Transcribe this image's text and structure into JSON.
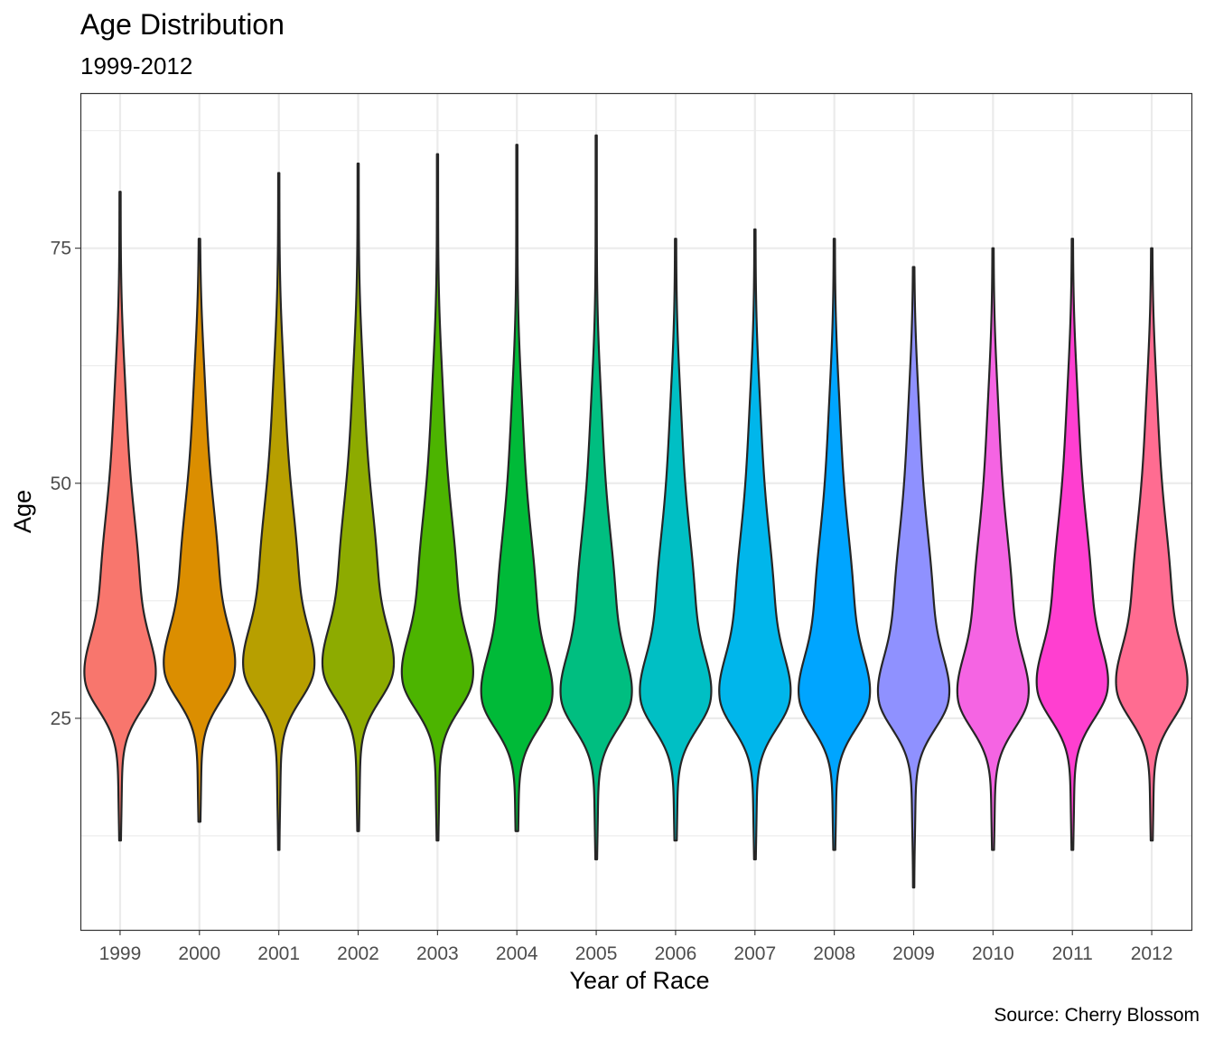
{
  "title": "Age Distribution",
  "subtitle": "1999-2012",
  "caption": "Source: Cherry Blossom",
  "chart_data": {
    "type": "violin",
    "xlabel": "Year of Race",
    "ylabel": "Age",
    "categories": [
      "1999",
      "2000",
      "2001",
      "2002",
      "2003",
      "2004",
      "2005",
      "2006",
      "2007",
      "2008",
      "2009",
      "2010",
      "2011",
      "2012"
    ],
    "ylim": [
      2.5,
      91.5
    ],
    "yticks": [
      25,
      50,
      75
    ],
    "grid": true,
    "legend": "none",
    "outline_color": "#262626",
    "series": [
      {
        "name": "1999",
        "color": "#F8766D",
        "min": 12,
        "max": 81,
        "mode": 29
      },
      {
        "name": "2000",
        "color": "#DB8E00",
        "min": 14,
        "max": 76,
        "mode": 30
      },
      {
        "name": "2001",
        "color": "#B79F00",
        "min": 11,
        "max": 83,
        "mode": 30
      },
      {
        "name": "2002",
        "color": "#8DAB00",
        "min": 13,
        "max": 84,
        "mode": 30
      },
      {
        "name": "2003",
        "color": "#4CB400",
        "min": 12,
        "max": 85,
        "mode": 29
      },
      {
        "name": "2004",
        "color": "#00BA38",
        "min": 13,
        "max": 86,
        "mode": 27
      },
      {
        "name": "2005",
        "color": "#00BE80",
        "min": 10,
        "max": 87,
        "mode": 27
      },
      {
        "name": "2006",
        "color": "#00BFC4",
        "min": 12,
        "max": 76,
        "mode": 27
      },
      {
        "name": "2007",
        "color": "#00B6EB",
        "min": 10,
        "max": 77,
        "mode": 27
      },
      {
        "name": "2008",
        "color": "#00A5FF",
        "min": 11,
        "max": 76,
        "mode": 27
      },
      {
        "name": "2009",
        "color": "#8F91FF",
        "min": 7,
        "max": 73,
        "mode": 27
      },
      {
        "name": "2010",
        "color": "#F564E3",
        "min": 11,
        "max": 75,
        "mode": 27
      },
      {
        "name": "2011",
        "color": "#FF3FD0",
        "min": 11,
        "max": 76,
        "mode": 28
      },
      {
        "name": "2012",
        "color": "#FF6C91",
        "min": 12,
        "max": 75,
        "mode": 28
      }
    ]
  }
}
